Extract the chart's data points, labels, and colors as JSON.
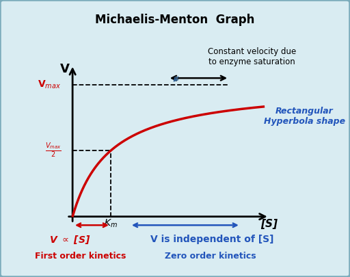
{
  "title": "Michaelis-Menton  Graph",
  "background_color": "#d9ecf2",
  "curve_color": "#cc0000",
  "curve_linewidth": 2.5,
  "vmax": 1.0,
  "km": 0.2,
  "x_max": 1.0,
  "axis_label_V": "V",
  "axis_label_S": "[S]",
  "vmax_label": "V$_{max}$",
  "vmax2_label": "$\\frac{V_{max}}{2}$",
  "km_label": "$K_m$",
  "annotation_constant": "Constant velocity due\nto enzyme saturation",
  "annotation_hyperbola": "Rectangular\nHyperbola shape",
  "annotation_proportional": "V $\\propto$ [S]",
  "annotation_first_order": "First order kinetics",
  "annotation_independent": "V is independent of [S]",
  "annotation_zero_order": "Zero order kinetics",
  "red_color": "#cc0000",
  "blue_color": "#2255bb",
  "black_color": "#000000",
  "dashed_color": "#000000",
  "border_color": "#7aabbb"
}
